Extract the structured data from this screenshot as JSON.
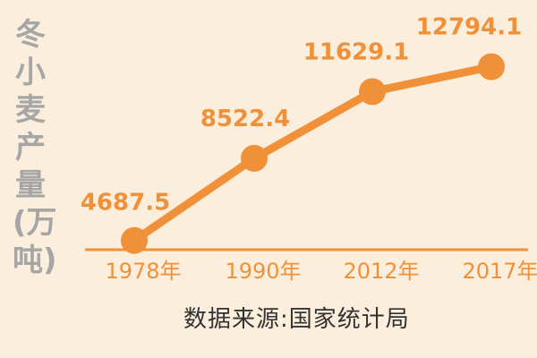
{
  "colors": {
    "background": "#FCEEDC",
    "line": "#F0913A",
    "label": "#F0913A",
    "axis_label": "#A6A6A6",
    "source_text": "#333333"
  },
  "chart_data": {
    "type": "line",
    "title": "",
    "xlabel": "",
    "ylabel": "冬小麦产量(万吨)",
    "categories": [
      "1978年",
      "1990年",
      "2012年",
      "2017年"
    ],
    "series": [
      {
        "values": [
          4687.5,
          8522.4,
          11629.1,
          12794.1
        ]
      }
    ],
    "data_labels": [
      "4687.5",
      "8522.4",
      "11629.1",
      "12794.1"
    ],
    "ylim": [
      3800,
      13400
    ],
    "grid": false,
    "legend": "none"
  },
  "source": "数据来源:国家统计局"
}
